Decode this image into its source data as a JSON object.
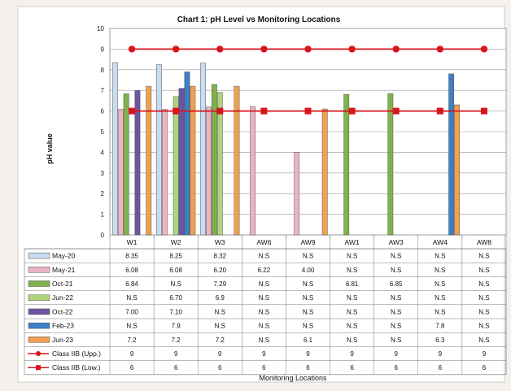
{
  "chart_data": {
    "type": "bar",
    "title": "Chart 1: pH Level vs Monitoring Locations",
    "ylabel": "pH value",
    "xlabel": "Monitoring Locations",
    "ylim": [
      0,
      10
    ],
    "yticks": [
      "0",
      "1",
      "2",
      "3",
      "4",
      "5",
      "6",
      "7",
      "8",
      "9",
      "10"
    ],
    "grid": true,
    "categories": [
      "W1",
      "W2",
      "W3",
      "AW6",
      "AW9",
      "AW1",
      "AW3",
      "AW4",
      "AW8"
    ],
    "series": [
      {
        "name": "May-20",
        "color": "#c9dcf0",
        "values": [
          8.35,
          8.25,
          8.32,
          null,
          null,
          null,
          null,
          null,
          null
        ],
        "labels": [
          "8.35",
          "8.25",
          "8.32",
          "N.S",
          "N.S",
          "N.S",
          "N.S",
          "N.S",
          "N.S"
        ]
      },
      {
        "name": "May-21",
        "color": "#eab4c4",
        "values": [
          6.08,
          6.08,
          6.2,
          6.22,
          4.0,
          null,
          null,
          null,
          null
        ],
        "labels": [
          "6.08",
          "6.08",
          "6.20",
          "6.22",
          "4.00",
          "N.S",
          "N.S",
          "N.S",
          "N.S"
        ]
      },
      {
        "name": "Oct-21",
        "color": "#7fb24a",
        "values": [
          6.84,
          null,
          7.29,
          null,
          null,
          6.81,
          6.85,
          null,
          null
        ],
        "labels": [
          "6.84",
          "N.S",
          "7.29",
          "N.S",
          "N.S",
          "6.81",
          "6.85",
          "N.S",
          "N.S"
        ]
      },
      {
        "name": "Jun-22",
        "color": "#aed47e",
        "values": [
          null,
          6.7,
          6.9,
          null,
          null,
          null,
          null,
          null,
          null
        ],
        "labels": [
          "N.S",
          "6.70",
          "6.9",
          "N.S",
          "N.S",
          "N.S",
          "N.S",
          "N.S",
          "N.S"
        ]
      },
      {
        "name": "Oct-22",
        "color": "#6b55a3",
        "values": [
          7.0,
          7.1,
          null,
          null,
          null,
          null,
          null,
          null,
          null
        ],
        "labels": [
          "7.00",
          "7.10",
          "N.S",
          "N.S",
          "N.S",
          "N.S",
          "N.S",
          "N.S",
          "N.S"
        ]
      },
      {
        "name": "Feb-23",
        "color": "#3d7fc8",
        "values": [
          null,
          7.9,
          null,
          null,
          null,
          null,
          null,
          7.8,
          null
        ],
        "labels": [
          "N.S",
          "7.9",
          "N.S",
          "N.S",
          "N.S",
          "N.S",
          "N.S",
          "7.8",
          "N.S"
        ]
      },
      {
        "name": "Jun-23",
        "color": "#f0a050",
        "values": [
          7.2,
          7.2,
          7.2,
          null,
          6.1,
          null,
          null,
          6.3,
          null
        ],
        "labels": [
          "7.2",
          "7.2",
          "7.2",
          "N.S",
          "6.1",
          "N.S",
          "N.S",
          "6.3",
          "N.S"
        ]
      }
    ],
    "limit_lines": [
      {
        "name": "Class IIB (Upp.)",
        "color": "#d8141c",
        "marker": "circle",
        "values": [
          9,
          9,
          9,
          9,
          9,
          9,
          9,
          9,
          9
        ],
        "labels": [
          "9",
          "9",
          "9",
          "9",
          "9",
          "9",
          "9",
          "9",
          "9"
        ]
      },
      {
        "name": "Class IIB (Low.)",
        "color": "#d8141c",
        "marker": "square",
        "values": [
          6,
          6,
          6,
          6,
          6,
          6,
          6,
          6,
          6
        ],
        "labels": [
          "6",
          "6",
          "6",
          "6",
          "6",
          "6",
          "6",
          "6",
          "6"
        ]
      }
    ]
  }
}
